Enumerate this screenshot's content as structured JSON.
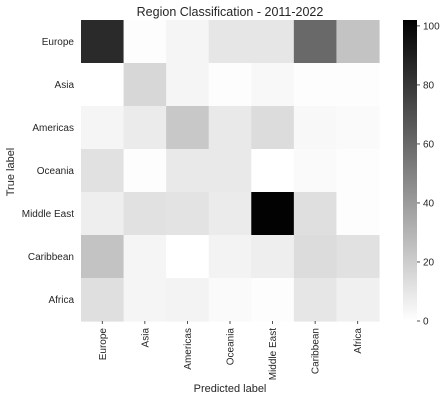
{
  "chart_data": {
    "type": "heatmap",
    "title": "Region Classification - 2011-2022",
    "xlabel": "Predicted label",
    "ylabel": "True label",
    "x_categories": [
      "Europe",
      "Asia",
      "Americas",
      "Oceania",
      "Middle East",
      "Caribbean",
      "Africa"
    ],
    "y_categories": [
      "Europe",
      "Asia",
      "Americas",
      "Oceania",
      "Middle East",
      "Caribbean",
      "Africa"
    ],
    "values": [
      [
        85,
        1,
        4,
        10,
        10,
        60,
        24
      ],
      [
        0,
        16,
        4,
        1,
        3,
        1,
        1
      ],
      [
        4,
        8,
        22,
        9,
        14,
        3,
        2
      ],
      [
        12,
        1,
        9,
        9,
        0,
        2,
        1
      ],
      [
        7,
        12,
        11,
        8,
        101,
        13,
        1
      ],
      [
        24,
        4,
        0,
        5,
        7,
        14,
        12
      ],
      [
        13,
        4,
        5,
        2,
        1,
        10,
        6
      ]
    ],
    "colorbar": {
      "range": [
        0,
        102
      ],
      "ticks": [
        0,
        20,
        40,
        60,
        80,
        100
      ]
    },
    "colormap": "Greys",
    "grid": false
  }
}
